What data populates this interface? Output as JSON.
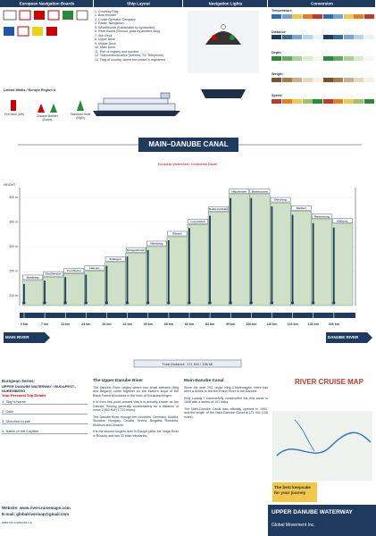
{
  "header": {
    "sections": [
      "European Navigation Boards",
      "Ship Layout",
      "Navigation Lights",
      "Conversion"
    ]
  },
  "boards": {
    "title": "Lateral Marks / Europe Region A",
    "port": "Port hand (Left)",
    "channel": "Channel Markers (Buoys)",
    "starboard": "Starboard Hand (Right)"
  },
  "ship_layout": {
    "items": [
      "1. Courtesy Flag",
      "2. Bow thruster",
      "3. Cruise Operator Company",
      "4. Radar, Navigation",
      "5. Wheelhouse (Extractable by hydraulics)",
      "6. River Board (Shroud; pass by another ship)",
      "7. Sun Deck",
      "8. Upper Deck",
      "9. Middle Deck",
      "10. Main Deck",
      "11. Port of registry and number",
      "12. Telecommunication (Internet, TV, Telephone)",
      "13. Flag of country, where the vessel is registered"
    ]
  },
  "conversion": {
    "rows": [
      "Temperature",
      "Distance",
      "Depth",
      "Weight",
      "Speed"
    ]
  },
  "canal": {
    "title": "MAIN–DANUBE CANAL",
    "watershed": "European Watershed / Continental Divide",
    "height_label": "HEIGHT",
    "ylim": [
      180,
      420
    ],
    "yticks": [
      {
        "value": 200,
        "label": "200 m"
      },
      {
        "value": 250,
        "label": "250 m"
      },
      {
        "value": 300,
        "label": "300 m"
      },
      {
        "value": 350,
        "label": "350 m"
      },
      {
        "value": 400,
        "label": "400 m"
      }
    ],
    "locks": [
      {
        "name": "Bamberg",
        "elevation": 231
      },
      {
        "name": "Strullendorf",
        "elevation": 238
      },
      {
        "name": "Forchheim",
        "elevation": 245
      },
      {
        "name": "Hausen",
        "elevation": 250
      },
      {
        "name": "Erlangen",
        "elevation": 268
      },
      {
        "name": "Kriegenbrunn",
        "elevation": 287
      },
      {
        "name": "Nürnberg",
        "elevation": 300
      },
      {
        "name": "Eibach",
        "elevation": 320
      },
      {
        "name": "Leerstetten",
        "elevation": 345
      },
      {
        "name": "Eckersmühlen",
        "elevation": 370
      },
      {
        "name": "Hilpoltstein",
        "elevation": 406
      },
      {
        "name": "Bachhausen",
        "elevation": 406
      },
      {
        "name": "Berching",
        "elevation": 389
      },
      {
        "name": "Dietfurt",
        "elevation": 372
      },
      {
        "name": "Riedenburg",
        "elevation": 355
      },
      {
        "name": "Kelheim",
        "elevation": 346
      }
    ],
    "distances": [
      "0 km",
      "7 km",
      "13 km",
      "24 km",
      "33 km",
      "41 km",
      "49 km",
      "68 km",
      "82 km",
      "84 km",
      "99 km",
      "106 km",
      "116 km",
      "123 km",
      "135 km",
      "166 km"
    ],
    "left_river": "MAIN RIVER",
    "right_river": "DANUBE RIVER",
    "total": "Total Distance: 171 KM / 106 MI"
  },
  "footer": {
    "series": "European Series:",
    "series_name": "UPPER DANUBE WATERWAY / BUDAPEST–NUREMBERG",
    "trip_title": "Your Personal Trip Details",
    "trip_items": [
      "1. Ship's Name",
      "2. Date",
      "3. Direction to sail",
      "4. Name of the Captain"
    ],
    "website": "Website: www.rivercruisemaps.com",
    "email": "E-mail: globalrivermap@gmail.com",
    "isbn": "ISBN 978-0-9861451-1-5",
    "article1": {
      "title": "The Upper Danube River",
      "paragraphs": [
        "The Danube River begins where two small streams (Brig and Brigach) come together on the eastern slope of the Black Forest Mountains in the town of Donaueschingen.",
        "It is from this point onward that it is actually known as the Danube, flowing generally southeasterly for a distance of some 2,850 KM (1,770 miles).",
        "The Danube flows through ten countries: Germany, Austria, Slovakia, Hungary, Croatia, Serbia, Bulgaria, Romania, Moldova and Ukraine.",
        "It is the second longest river in Europe (after the Volga River in Russia) and has 33 main tributaries."
      ]
    },
    "article2": {
      "title": "Main-Danube Canal",
      "paragraphs": [
        "Since the year 793, under King Charlemagne, there has been a desire to link the Rhine River to the Danube.",
        "King Ludwig I successfully constructed the first canal in 1846 with a series of 101 locks.",
        "The Main-Danube Canal was officially opened in 1992, and the length of the Main-Danube Canal is 171 KM (106 miles)."
      ]
    },
    "brand": {
      "map_title": "RIVER CRUISE MAP",
      "keepsake": "The best keepsake for your journey",
      "product": "UPPER DANUBE WATERWAY",
      "company": "Global Movement Inc."
    }
  }
}
